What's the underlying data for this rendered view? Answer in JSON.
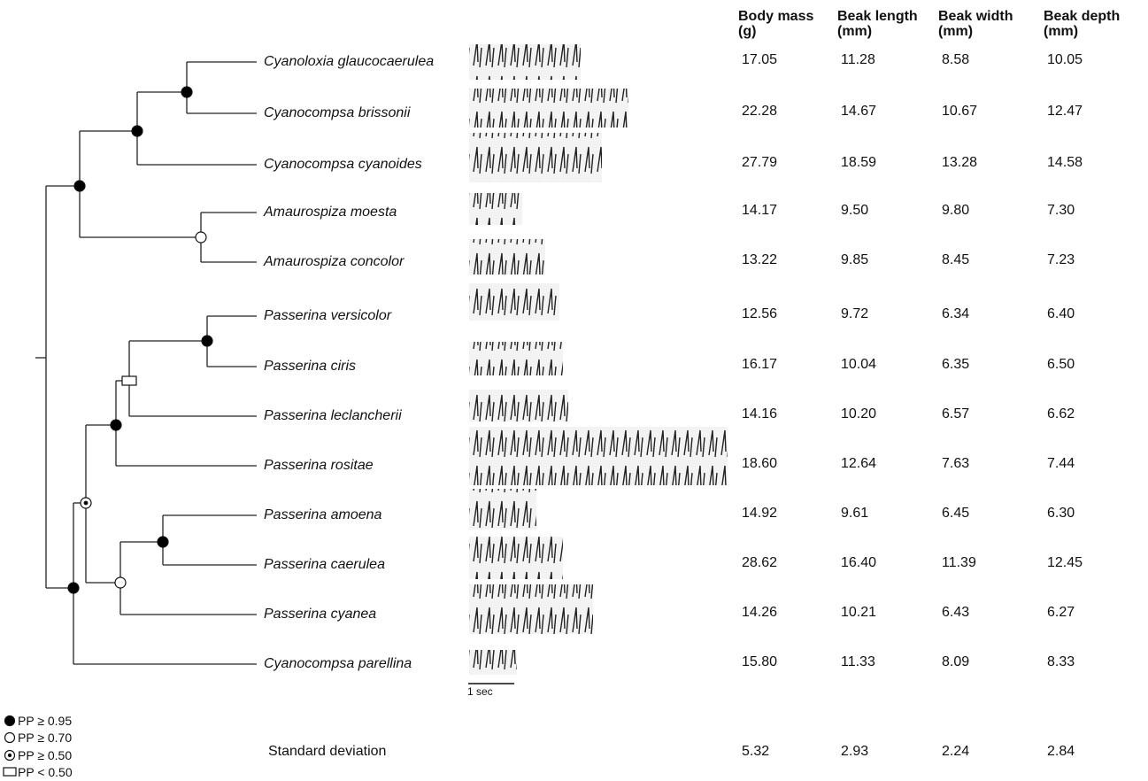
{
  "headers": [
    "Body mass (g)",
    "Beak length (mm)",
    "Beak width (mm)",
    "Beak depth (mm)"
  ],
  "rows": [
    {
      "species": "Cyanoloxia glaucocaerulea",
      "values": [
        "17.05",
        "11.28",
        "8.58",
        "10.05"
      ]
    },
    {
      "species": "Cyanocompsa brissonii",
      "values": [
        "22.28",
        "14.67",
        "10.67",
        "12.47"
      ]
    },
    {
      "species": "Cyanocompsa cyanoides",
      "values": [
        "27.79",
        "18.59",
        "13.28",
        "14.58"
      ]
    },
    {
      "species": "Amaurospiza moesta",
      "values": [
        "14.17",
        "9.50",
        "9.80",
        "7.30"
      ]
    },
    {
      "species": "Amaurospiza concolor",
      "values": [
        "13.22",
        "9.85",
        "8.45",
        "7.23"
      ]
    },
    {
      "species": "Passerina versicolor",
      "values": [
        "12.56",
        "9.72",
        "6.34",
        "6.40"
      ]
    },
    {
      "species": "Passerina ciris",
      "values": [
        "16.17",
        "10.04",
        "6.35",
        "6.50"
      ]
    },
    {
      "species": "Passerina leclancherii",
      "values": [
        "14.16",
        "10.20",
        "6.57",
        "6.62"
      ]
    },
    {
      "species": "Passerina rositae",
      "values": [
        "18.60",
        "12.64",
        "7.63",
        "7.44"
      ]
    },
    {
      "species": "Passerina amoena",
      "values": [
        "14.92",
        "9.61",
        "6.45",
        "6.30"
      ]
    },
    {
      "species": "Passerina caerulea",
      "values": [
        "28.62",
        "16.40",
        "11.39",
        "12.45"
      ]
    },
    {
      "species": "Passerina cyanea",
      "values": [
        "14.26",
        "10.21",
        "6.43",
        "6.27"
      ]
    },
    {
      "species": "Cyanocompsa parellina",
      "values": [
        "15.80",
        "11.33",
        "8.09",
        "8.33"
      ]
    }
  ],
  "standard_deviation": {
    "label": "Standard deviation",
    "values": [
      "5.32",
      "2.93",
      "2.24",
      "2.84"
    ]
  },
  "scale_bar": "1 sec",
  "legend": [
    "PP ≥ 0.95",
    "PP ≥ 0.70",
    "PP ≥ 0.50",
    "PP < 0.50"
  ]
}
